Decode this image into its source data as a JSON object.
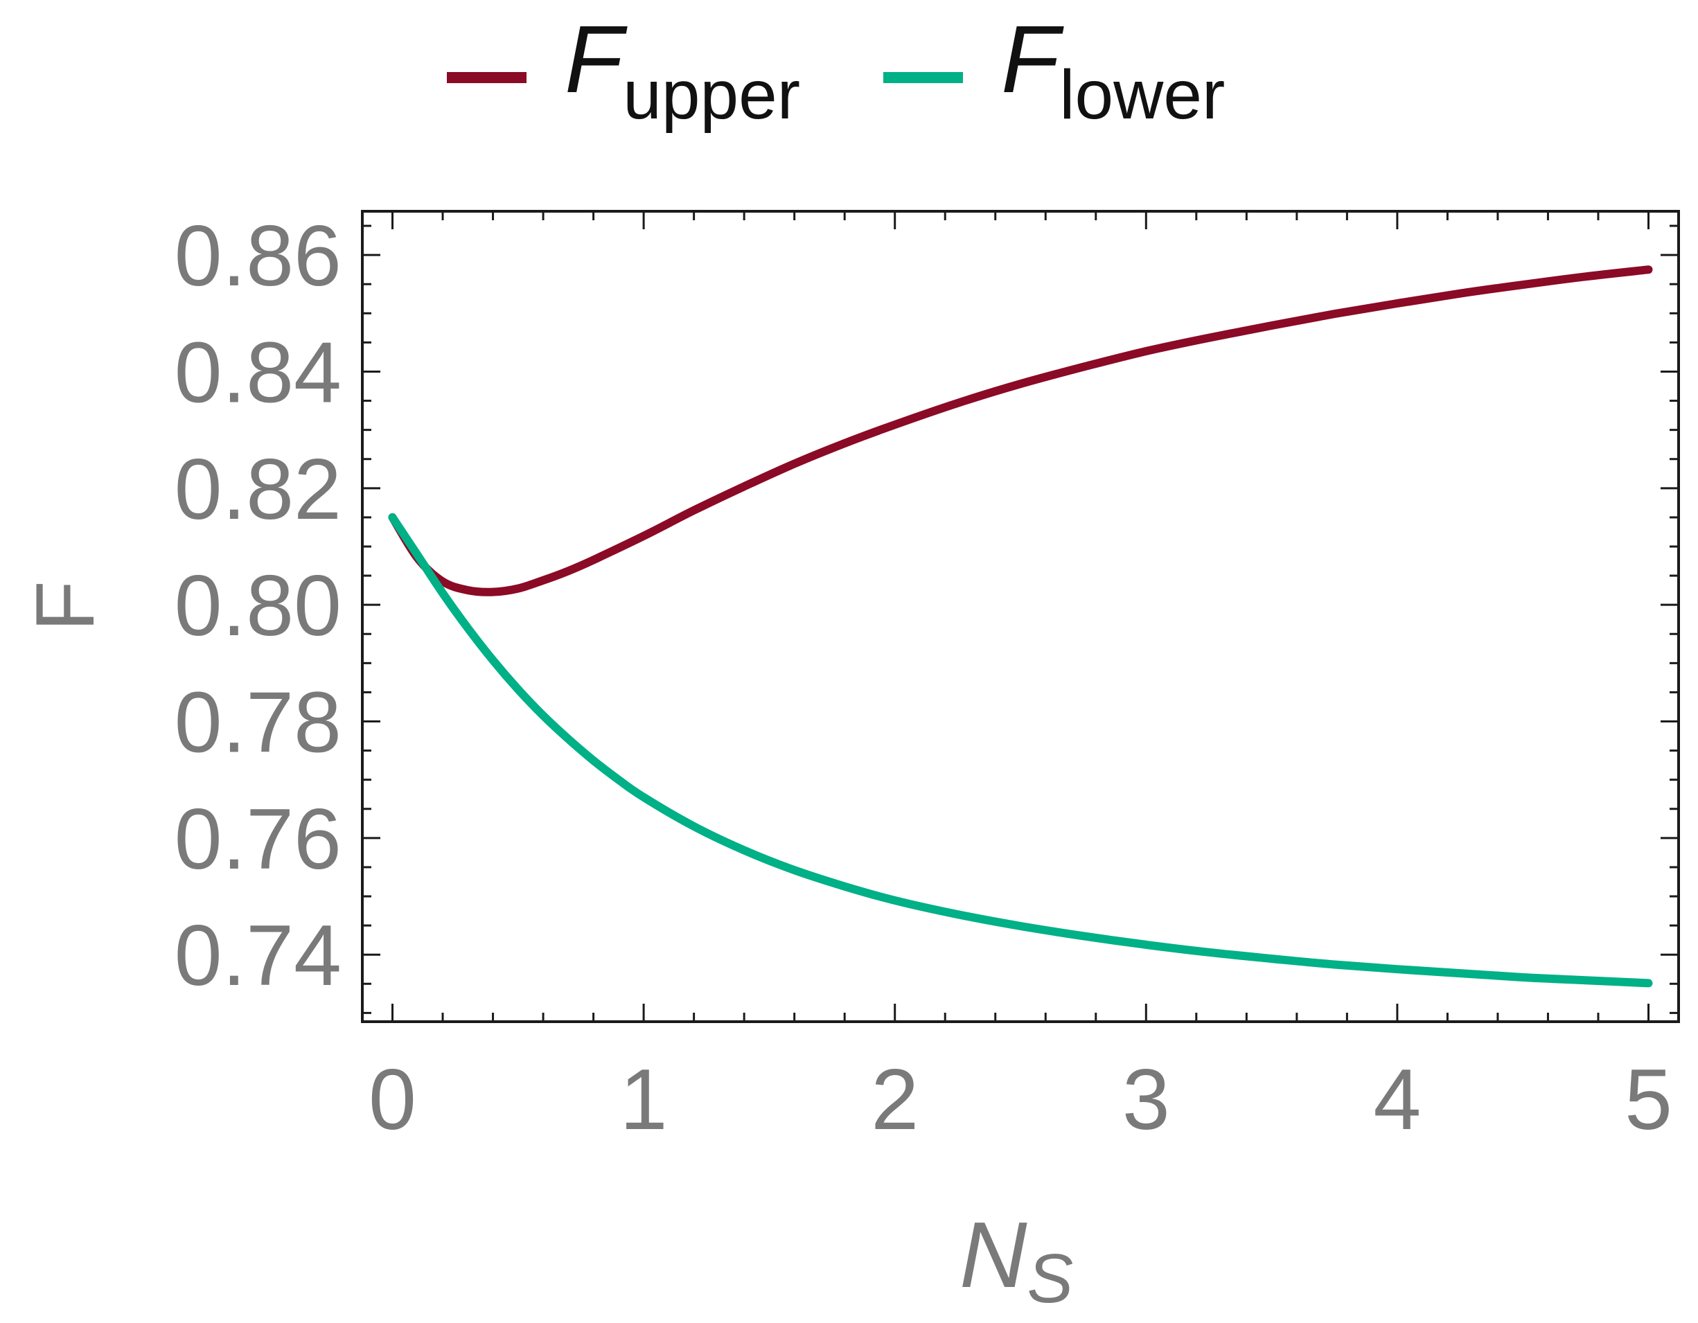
{
  "chart_data": {
    "type": "line",
    "title": "",
    "xlabel": {
      "main": "N",
      "sub": "S"
    },
    "ylabel": "F",
    "xlim": [
      -0.12,
      5.12
    ],
    "ylim": [
      0.7285,
      0.8675
    ],
    "xticks": [
      {
        "value": 0,
        "label": "0"
      },
      {
        "value": 1,
        "label": "1"
      },
      {
        "value": 2,
        "label": "2"
      },
      {
        "value": 3,
        "label": "3"
      },
      {
        "value": 4,
        "label": "4"
      },
      {
        "value": 5,
        "label": "5"
      }
    ],
    "yticks": [
      {
        "value": 0.74,
        "label": "0.74"
      },
      {
        "value": 0.76,
        "label": "0.76"
      },
      {
        "value": 0.78,
        "label": "0.78"
      },
      {
        "value": 0.8,
        "label": "0.80"
      },
      {
        "value": 0.82,
        "label": "0.82"
      },
      {
        "value": 0.84,
        "label": "0.84"
      },
      {
        "value": 0.86,
        "label": "0.86"
      }
    ],
    "x_minor_step": 0.2,
    "y_minor_step": 0.005,
    "legend_placement": "top-center",
    "series": [
      {
        "name": "F",
        "name_sub": "upper",
        "color": "#8b0a26",
        "points": [
          [
            0.0,
            0.815
          ],
          [
            0.1,
            0.808
          ],
          [
            0.2,
            0.804
          ],
          [
            0.3,
            0.8025
          ],
          [
            0.4,
            0.8022
          ],
          [
            0.5,
            0.8028
          ],
          [
            0.6,
            0.8042
          ],
          [
            0.7,
            0.8058
          ],
          [
            0.8,
            0.8077
          ],
          [
            1.0,
            0.8118
          ],
          [
            1.2,
            0.8162
          ],
          [
            1.4,
            0.8203
          ],
          [
            1.6,
            0.8242
          ],
          [
            1.8,
            0.8277
          ],
          [
            2.0,
            0.8309
          ],
          [
            2.25,
            0.8346
          ],
          [
            2.5,
            0.8379
          ],
          [
            2.75,
            0.8408
          ],
          [
            3.0,
            0.8435
          ],
          [
            3.25,
            0.8458
          ],
          [
            3.5,
            0.8479
          ],
          [
            3.75,
            0.8499
          ],
          [
            4.0,
            0.8517
          ],
          [
            4.25,
            0.8534
          ],
          [
            4.5,
            0.8549
          ],
          [
            4.75,
            0.8563
          ],
          [
            5.0,
            0.8575
          ]
        ]
      },
      {
        "name": "F",
        "name_sub": "lower",
        "color": "#00b086",
        "points": [
          [
            0.0,
            0.815
          ],
          [
            0.1,
            0.8085
          ],
          [
            0.2,
            0.802
          ],
          [
            0.3,
            0.796
          ],
          [
            0.4,
            0.7905
          ],
          [
            0.5,
            0.7855
          ],
          [
            0.6,
            0.781
          ],
          [
            0.7,
            0.777
          ],
          [
            0.8,
            0.7733
          ],
          [
            0.9,
            0.77
          ],
          [
            1.0,
            0.767
          ],
          [
            1.2,
            0.762
          ],
          [
            1.4,
            0.7579
          ],
          [
            1.6,
            0.7545
          ],
          [
            1.8,
            0.7517
          ],
          [
            2.0,
            0.7493
          ],
          [
            2.25,
            0.7469
          ],
          [
            2.5,
            0.7449
          ],
          [
            2.75,
            0.7432
          ],
          [
            3.0,
            0.7417
          ],
          [
            3.25,
            0.7404
          ],
          [
            3.5,
            0.7393
          ],
          [
            3.75,
            0.7383
          ],
          [
            4.0,
            0.7375
          ],
          [
            4.25,
            0.7368
          ],
          [
            4.5,
            0.7361
          ],
          [
            4.75,
            0.7356
          ],
          [
            5.0,
            0.7351
          ]
        ]
      }
    ]
  }
}
